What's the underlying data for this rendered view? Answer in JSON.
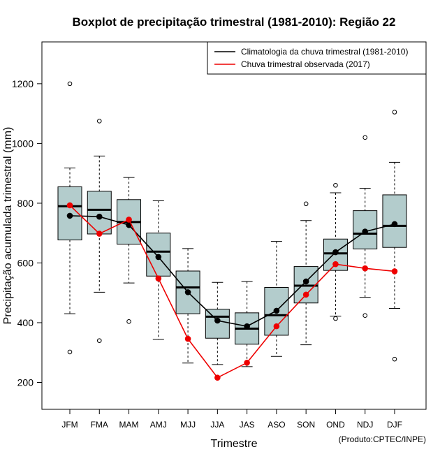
{
  "chart_data": {
    "type": "boxplot",
    "title": "Boxplot de precipitação trimestral (1981-2010): Região 22",
    "xlabel": "Trimestre",
    "ylabel": "Precipitação acumulada trimestral (mm)",
    "credit": "(Produto:CPTEC/INPE)",
    "ylim": [
      110,
      1340
    ],
    "yticks": [
      200,
      400,
      600,
      800,
      1000,
      1200
    ],
    "legend_position": "top-right",
    "categories": [
      "JFM",
      "FMA",
      "MAM",
      "AMJ",
      "MJJ",
      "JJA",
      "JAS",
      "ASO",
      "SON",
      "OND",
      "NDJ",
      "DJF"
    ],
    "boxes": [
      {
        "whisker_low": 430,
        "q1": 677,
        "median": 790,
        "q3": 855,
        "whisker_high": 918,
        "outliers": [
          302,
          1200
        ]
      },
      {
        "whisker_low": 502,
        "q1": 697,
        "median": 778,
        "q3": 840,
        "whisker_high": 958,
        "outliers": [
          340,
          1075
        ]
      },
      {
        "whisker_low": 533,
        "q1": 663,
        "median": 737,
        "q3": 812,
        "whisker_high": 886,
        "outliers": [
          404
        ]
      },
      {
        "whisker_low": 344,
        "q1": 556,
        "median": 638,
        "q3": 700,
        "whisker_high": 808,
        "outliers": []
      },
      {
        "whisker_low": 265,
        "q1": 430,
        "median": 518,
        "q3": 573,
        "whisker_high": 648,
        "outliers": []
      },
      {
        "whisker_low": 260,
        "q1": 348,
        "median": 420,
        "q3": 445,
        "whisker_high": 535,
        "outliers": []
      },
      {
        "whisker_low": 253,
        "q1": 328,
        "median": 380,
        "q3": 433,
        "whisker_high": 538,
        "outliers": []
      },
      {
        "whisker_low": 287,
        "q1": 358,
        "median": 425,
        "q3": 518,
        "whisker_high": 672,
        "outliers": []
      },
      {
        "whisker_low": 326,
        "q1": 466,
        "median": 524,
        "q3": 588,
        "whisker_high": 742,
        "outliers": [
          798
        ]
      },
      {
        "whisker_low": 422,
        "q1": 575,
        "median": 632,
        "q3": 680,
        "whisker_high": 835,
        "outliers": [
          414,
          860
        ]
      },
      {
        "whisker_low": 485,
        "q1": 647,
        "median": 698,
        "q3": 775,
        "whisker_high": 850,
        "outliers": [
          424,
          1020
        ]
      },
      {
        "whisker_low": 448,
        "q1": 652,
        "median": 724,
        "q3": 828,
        "whisker_high": 937,
        "outliers": [
          278,
          1105
        ]
      }
    ],
    "series": [
      {
        "name": "Climatologia da chuva trimestral (1981-2010)",
        "color": "#000000",
        "values": [
          758,
          755,
          727,
          620,
          502,
          407,
          388,
          440,
          538,
          636,
          705,
          730
        ]
      },
      {
        "name": "Chuva trimestral observada (2017)",
        "color": "#ee0000",
        "values": [
          793,
          698,
          745,
          548,
          346,
          216,
          266,
          388,
          494,
          596,
          582,
          572
        ]
      }
    ],
    "box_fill": "#b3cccc"
  }
}
